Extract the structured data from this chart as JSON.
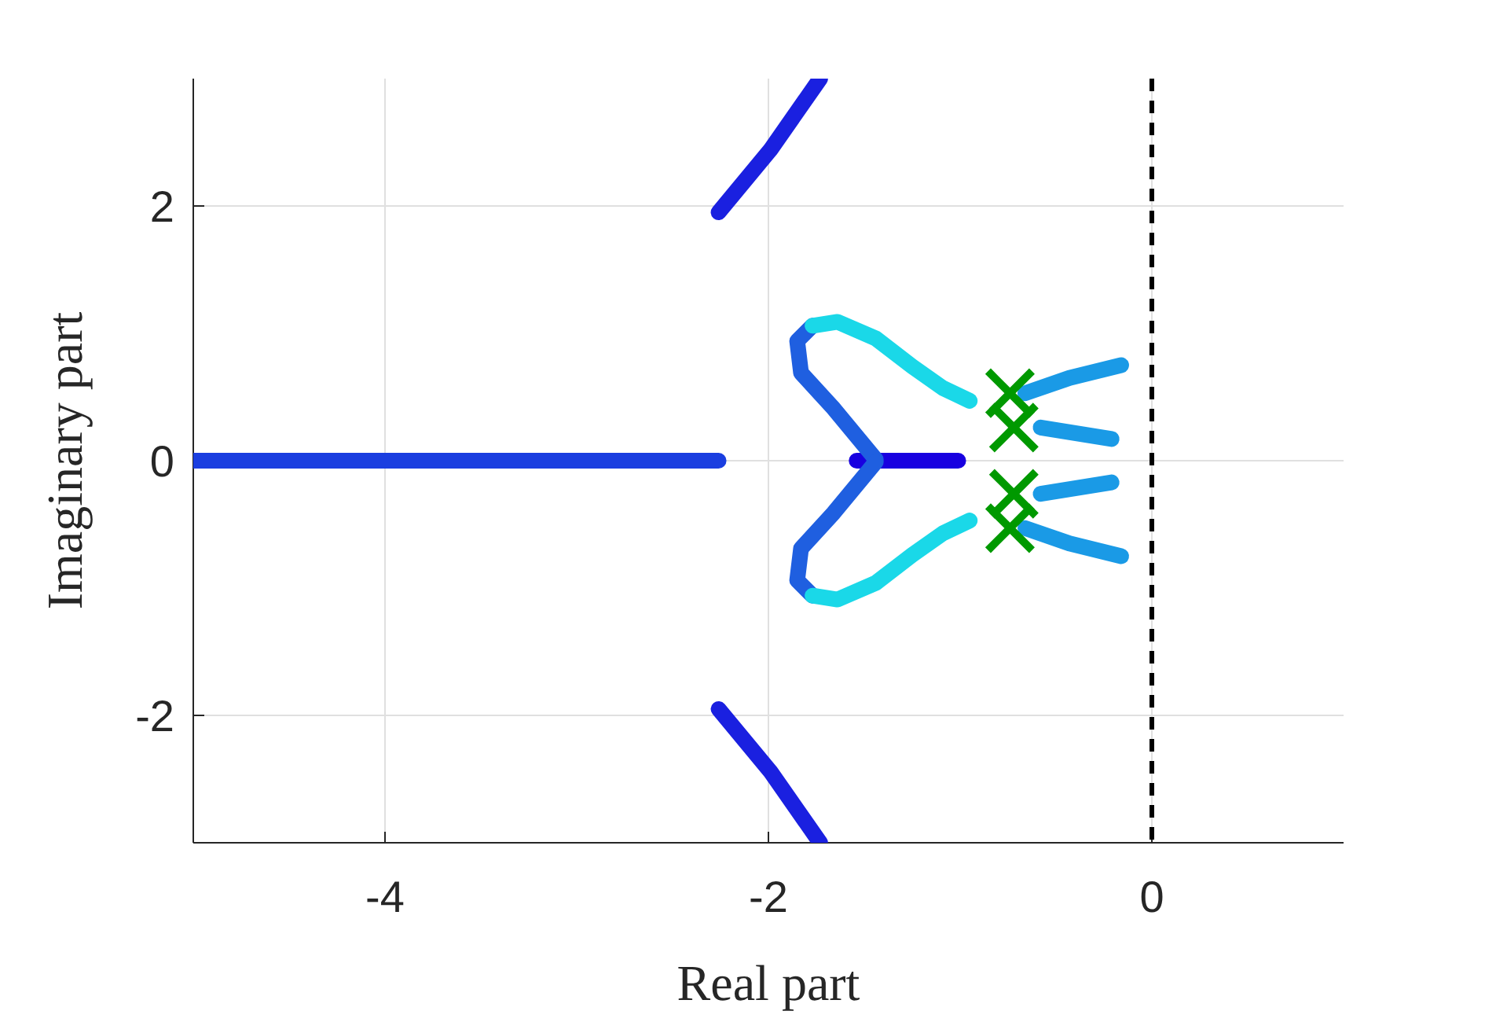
{
  "chart_data": {
    "type": "line",
    "xlabel": "Real part",
    "ylabel": "Imaginary part",
    "xlim": [
      -5,
      1
    ],
    "ylim": [
      -3,
      3
    ],
    "xticks": [
      -4,
      -2,
      0
    ],
    "yticks": [
      -2,
      0,
      2
    ],
    "grid": true,
    "line_style": "solid",
    "marker": "none",
    "ref_lines": [
      {
        "axis": "x",
        "value": 0,
        "color": "#000000",
        "line_style": "dashed"
      }
    ],
    "series": [
      {
        "color": "#1a3ee0",
        "x": [
          -5,
          -3.6,
          -2.26
        ],
        "values": [
          0,
          0,
          0
        ]
      },
      {
        "color": "#1a20e0",
        "x": [
          -2.26,
          -1.99,
          -1.73
        ],
        "values": [
          1.95,
          2.44,
          3.0
        ]
      },
      {
        "color": "#1a20e0",
        "x": [
          -2.26,
          -1.99,
          -1.73
        ],
        "values": [
          -1.95,
          -2.44,
          -3.0
        ]
      },
      {
        "color": "#1800e0",
        "x": [
          -1.54,
          -1.01
        ],
        "values": [
          0,
          0
        ]
      },
      {
        "color": "#1f5fe0",
        "x": [
          -1.44,
          -1.66,
          -1.83,
          -1.85,
          -1.77
        ],
        "values": [
          0.01,
          0.41,
          0.69,
          0.94,
          1.06
        ]
      },
      {
        "color": "#1ad8e8",
        "x": [
          -1.77,
          -1.64,
          -1.44,
          -1.25,
          -1.09,
          -0.95
        ],
        "values": [
          1.06,
          1.09,
          0.96,
          0.74,
          0.57,
          0.47
        ]
      },
      {
        "color": "#1f5fe0",
        "x": [
          -1.44,
          -1.66,
          -1.83,
          -1.85,
          -1.77
        ],
        "values": [
          -0.01,
          -0.41,
          -0.69,
          -0.94,
          -1.06
        ]
      },
      {
        "color": "#1ad8e8",
        "x": [
          -1.77,
          -1.64,
          -1.44,
          -1.25,
          -1.09,
          -0.95
        ],
        "values": [
          -1.06,
          -1.09,
          -0.96,
          -0.74,
          -0.57,
          -0.47
        ]
      },
      {
        "color": "#1a9ae6",
        "x": [
          -0.66,
          -0.43,
          -0.16
        ],
        "values": [
          0.53,
          0.65,
          0.75
        ]
      },
      {
        "color": "#1a9ae6",
        "x": [
          -0.58,
          -0.21
        ],
        "values": [
          0.26,
          0.17
        ]
      },
      {
        "color": "#1a9ae6",
        "x": [
          -0.58,
          -0.21
        ],
        "values": [
          -0.26,
          -0.17
        ]
      },
      {
        "color": "#1a9ae6",
        "x": [
          -0.66,
          -0.43,
          -0.16
        ],
        "values": [
          -0.53,
          -0.65,
          -0.75
        ]
      },
      {
        "type": "scatter",
        "marker": "cross",
        "color": "#009900",
        "x": [
          -0.74,
          -0.72,
          -0.72,
          -0.74
        ],
        "values": [
          0.53,
          0.26,
          -0.26,
          -0.53
        ]
      }
    ]
  }
}
